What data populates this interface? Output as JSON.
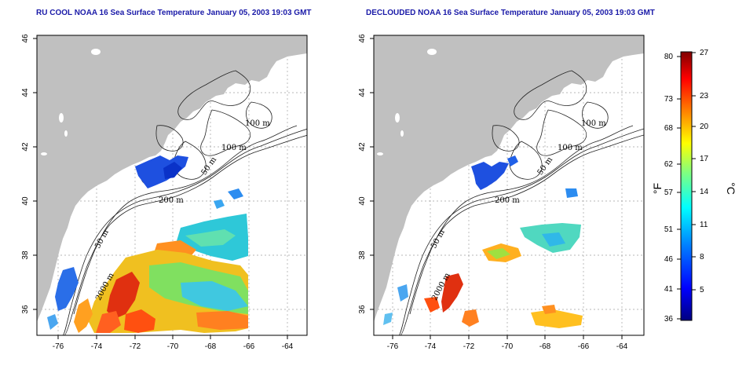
{
  "panels": [
    {
      "title": "RU COOL NOAA 16 Sea Surface Temperature January 05, 2003 19:03 GMT",
      "x_ticks": [
        "-76",
        "-74",
        "-72",
        "-70",
        "-68",
        "-66",
        "-64"
      ],
      "y_ticks": [
        "36",
        "38",
        "40",
        "42",
        "44",
        "46"
      ],
      "contour_labels": [
        "100 m",
        "100 m",
        "50 m",
        "200 m",
        "50 m",
        "2000 m"
      ]
    },
    {
      "title": "DECLOUDED NOAA 16 Sea Surface Temperature January 05, 2003 19:03 GMT",
      "x_ticks": [
        "-76",
        "-74",
        "-72",
        "-70",
        "-68",
        "-66",
        "-64"
      ],
      "y_ticks": [
        "36",
        "38",
        "40",
        "42",
        "44",
        "46"
      ],
      "contour_labels": [
        "100 m",
        "100 m",
        "50 m",
        "200 m",
        "50 m",
        "2000 m"
      ]
    }
  ],
  "colorbar": {
    "f_label": "°F",
    "c_label": "°C",
    "f_ticks": [
      "80",
      "73",
      "68",
      "62",
      "57",
      "51",
      "46",
      "41",
      "36"
    ],
    "c_ticks": [
      "27",
      "23",
      "20",
      "17",
      "14",
      "11",
      "8",
      "5"
    ],
    "colors": [
      "#000080",
      "#0000ff",
      "#0080ff",
      "#00ffff",
      "#80ff80",
      "#ffff00",
      "#ff8000",
      "#ff0000",
      "#800000"
    ]
  },
  "land_color": "#c0c0c0"
}
